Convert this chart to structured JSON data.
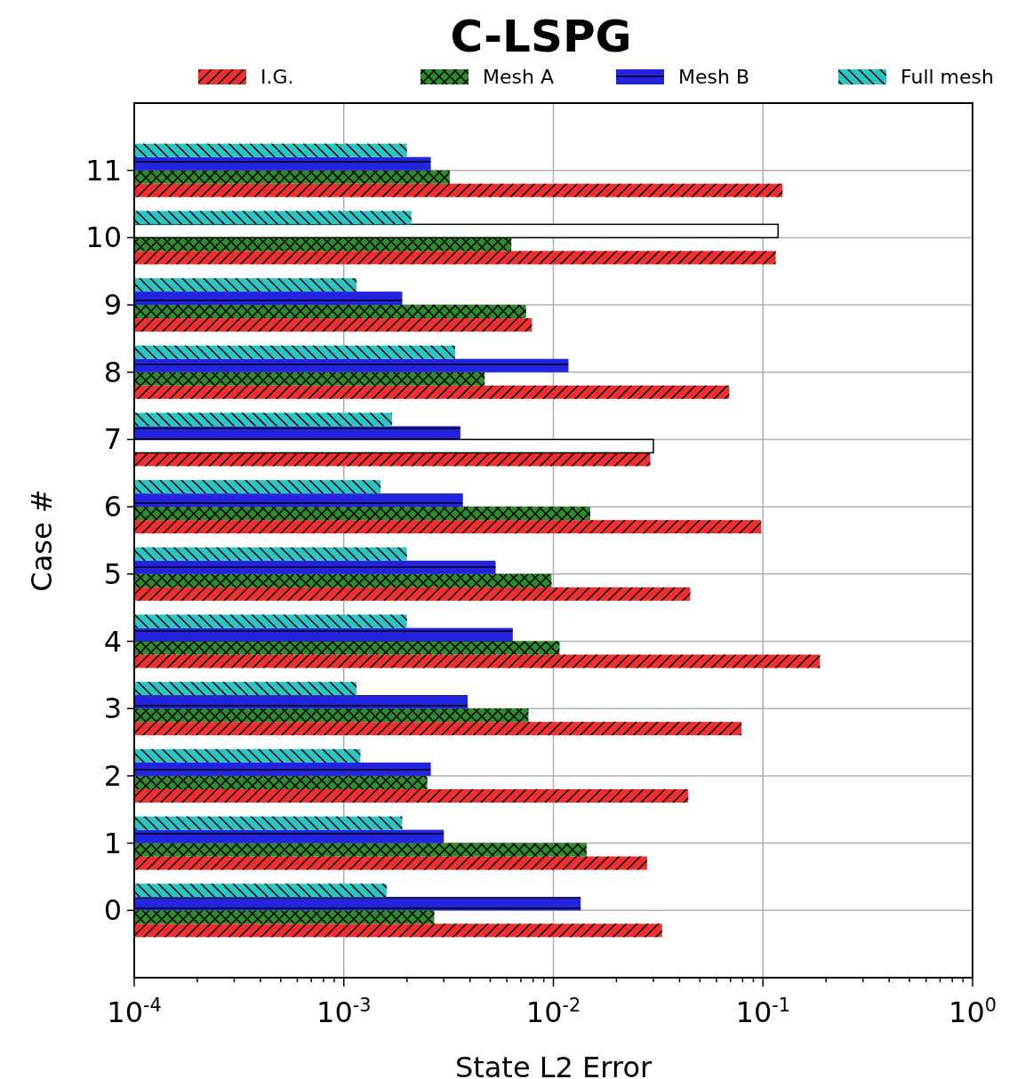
{
  "chart_data": {
    "type": "bar",
    "orientation": "horizontal",
    "title": "C-LSPG",
    "xlabel": "State L2 Error",
    "ylabel": "Case #",
    "categories": [
      "11",
      "10",
      "9",
      "8",
      "7",
      "6",
      "5",
      "4",
      "3",
      "2",
      "1",
      "0"
    ],
    "series": [
      {
        "name": "I.G.",
        "color": "#f03030",
        "values": [
          0.124,
          0.115,
          0.0079,
          0.069,
          0.029,
          0.098,
          0.045,
          0.187,
          0.079,
          0.044,
          0.028,
          0.033
        ]
      },
      {
        "name": "Mesh A",
        "color": "#2e8b2e",
        "colors": [
          "#2e8b2e",
          "#2e8b2e",
          "#2e8b2e",
          "#2e8b2e",
          "#ffffff",
          "#2e8b2e",
          "#2e8b2e",
          "#2e8b2e",
          "#2e8b2e",
          "#2e8b2e",
          "#2e8b2e",
          "#2e8b2e"
        ],
        "values": [
          0.0032,
          0.0063,
          0.0074,
          0.0047,
          0.03,
          0.015,
          0.0098,
          0.0107,
          0.0076,
          0.0025,
          0.0144,
          0.0027
        ]
      },
      {
        "name": "Mesh B",
        "color": "#2424e0",
        "colors": [
          "#2424e0",
          "#ffffff",
          "#2424e0",
          "#2424e0",
          "#2424e0",
          "#2424e0",
          "#2424e0",
          "#2424e0",
          "#2424e0",
          "#2424e0",
          "#2424e0",
          "#2424e0"
        ],
        "values": [
          0.0026,
          0.118,
          0.0019,
          0.0118,
          0.0036,
          0.0037,
          0.0053,
          0.0064,
          0.0039,
          0.0026,
          0.003,
          0.0135
        ]
      },
      {
        "name": "Full mesh",
        "color": "#2ec4c4",
        "values": [
          0.002,
          0.0021,
          0.00115,
          0.0034,
          0.0017,
          0.0015,
          0.002,
          0.002,
          0.00115,
          0.0012,
          0.0019,
          0.0016
        ]
      }
    ],
    "log": "x",
    "xlim": [
      0.0001,
      1
    ],
    "xticks": [
      {
        "value": 0.0001,
        "label": "10$^{-4}$"
      },
      {
        "value": 0.0002,
        "label": null
      },
      {
        "value": 0.0003,
        "label": null
      },
      {
        "value": 0.0004,
        "label": null
      },
      {
        "value": 0.0005,
        "label": null
      },
      {
        "value": 0.0006,
        "label": null
      },
      {
        "value": 0.0007,
        "label": null
      },
      {
        "value": 0.0008,
        "label": null
      },
      {
        "value": 0.0009,
        "label": null
      },
      {
        "value": 0.001,
        "label": "10$^{-3}$"
      },
      {
        "value": 0.002,
        "label": null
      },
      {
        "value": 0.003,
        "label": null
      },
      {
        "value": 0.004,
        "label": null
      },
      {
        "value": 0.005,
        "label": null
      },
      {
        "value": 0.006,
        "label": null
      },
      {
        "value": 0.007,
        "label": null
      },
      {
        "value": 0.008,
        "label": null
      },
      {
        "value": 0.009,
        "label": null
      },
      {
        "value": 0.01,
        "label": "10$^{-2}$"
      },
      {
        "value": 0.02,
        "label": null
      },
      {
        "value": 0.03,
        "label": null
      },
      {
        "value": 0.04,
        "label": null
      },
      {
        "value": 0.05,
        "label": null
      },
      {
        "value": 0.06,
        "label": null
      },
      {
        "value": 0.07,
        "label": null
      },
      {
        "value": 0.08,
        "label": null
      },
      {
        "value": 0.09,
        "label": null
      },
      {
        "value": 0.1,
        "label": "10$^{-1}$"
      },
      {
        "value": 0.2,
        "label": null
      },
      {
        "value": 0.3,
        "label": null
      },
      {
        "value": 0.4,
        "label": null
      },
      {
        "value": 0.5,
        "label": null
      },
      {
        "value": 0.6,
        "label": null
      },
      {
        "value": 0.7,
        "label": null
      },
      {
        "value": 0.8,
        "label": null
      },
      {
        "value": 0.9,
        "label": null
      },
      {
        "value": 1,
        "label": "10$^{0}$"
      }
    ],
    "grid": true,
    "legend": "top"
  }
}
